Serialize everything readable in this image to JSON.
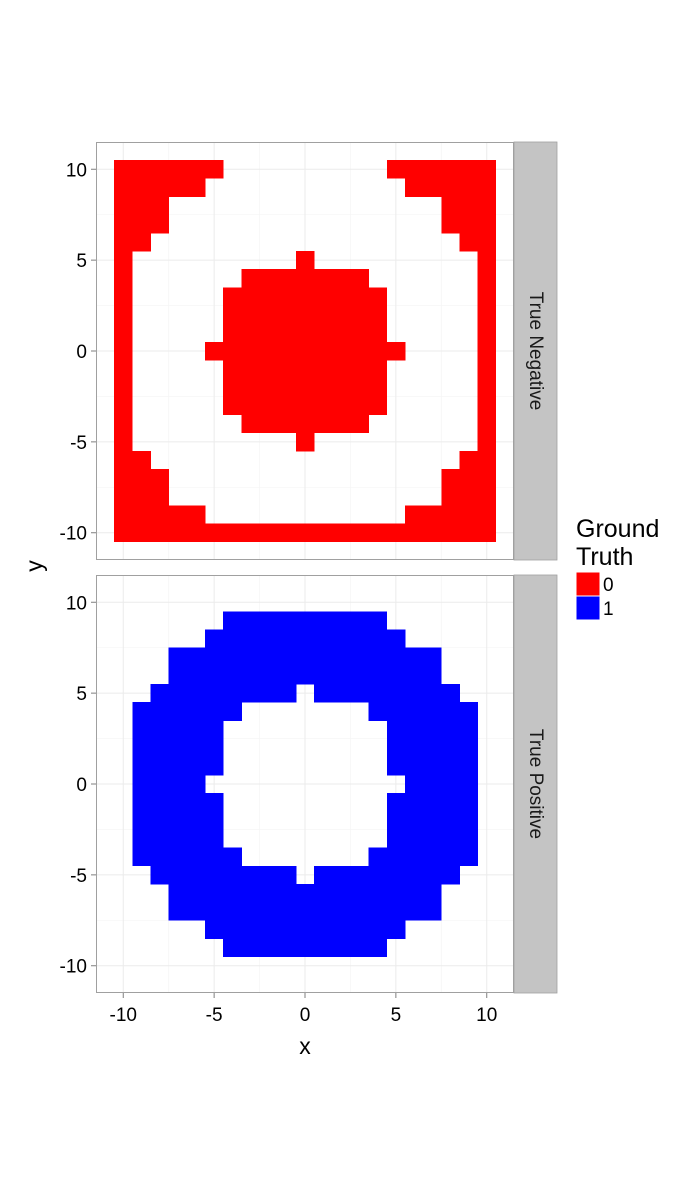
{
  "chart_data": {
    "type": "heatmap",
    "xlabel": "x",
    "ylabel": "y",
    "xlim": [
      -11.5,
      11.5
    ],
    "ylim": [
      -11.5,
      11.5
    ],
    "x_ticks": [
      "-10",
      "-5",
      "0",
      "5",
      "10"
    ],
    "y_ticks": [
      "10",
      "5",
      "0",
      "-5",
      "-10"
    ],
    "cell_size": 1,
    "grid": true,
    "legend": {
      "title_lines": [
        "Ground",
        "Truth"
      ],
      "placement": "right",
      "entries": [
        {
          "label": "0",
          "color": "#ff0000"
        },
        {
          "label": "1",
          "color": "#0000ff"
        }
      ]
    },
    "facets": [
      {
        "label": "True Negative",
        "ground_truth": "0",
        "color": "#ff0000",
        "rows": [
          {
            "y": 10,
            "spans": [
              [
                -10,
                -5
              ],
              [
                5,
                10
              ]
            ]
          },
          {
            "y": 9,
            "spans": [
              [
                -10,
                -6
              ],
              [
                6,
                10
              ]
            ]
          },
          {
            "y": 8,
            "spans": [
              [
                -10,
                -8
              ],
              [
                8,
                10
              ]
            ]
          },
          {
            "y": 7,
            "spans": [
              [
                -10,
                -8
              ],
              [
                8,
                10
              ]
            ]
          },
          {
            "y": 6,
            "spans": [
              [
                -10,
                -9
              ],
              [
                9,
                10
              ]
            ]
          },
          {
            "y": 5,
            "spans": [
              [
                -10,
                -10
              ],
              [
                0,
                0
              ],
              [
                10,
                10
              ]
            ]
          },
          {
            "y": 4,
            "spans": [
              [
                -10,
                -10
              ],
              [
                -3,
                3
              ],
              [
                10,
                10
              ]
            ]
          },
          {
            "y": 3,
            "spans": [
              [
                -10,
                -10
              ],
              [
                -4,
                4
              ],
              [
                10,
                10
              ]
            ]
          },
          {
            "y": 2,
            "spans": [
              [
                -10,
                -10
              ],
              [
                -4,
                4
              ],
              [
                10,
                10
              ]
            ]
          },
          {
            "y": 1,
            "spans": [
              [
                -10,
                -10
              ],
              [
                -4,
                4
              ],
              [
                10,
                10
              ]
            ]
          },
          {
            "y": 0,
            "spans": [
              [
                -10,
                -10
              ],
              [
                -5,
                5
              ],
              [
                10,
                10
              ]
            ]
          },
          {
            "y": -1,
            "spans": [
              [
                -10,
                -10
              ],
              [
                -4,
                4
              ],
              [
                10,
                10
              ]
            ]
          },
          {
            "y": -2,
            "spans": [
              [
                -10,
                -10
              ],
              [
                -4,
                4
              ],
              [
                10,
                10
              ]
            ]
          },
          {
            "y": -3,
            "spans": [
              [
                -10,
                -10
              ],
              [
                -4,
                4
              ],
              [
                10,
                10
              ]
            ]
          },
          {
            "y": -4,
            "spans": [
              [
                -10,
                -10
              ],
              [
                -3,
                3
              ],
              [
                10,
                10
              ]
            ]
          },
          {
            "y": -5,
            "spans": [
              [
                -10,
                -10
              ],
              [
                0,
                0
              ],
              [
                10,
                10
              ]
            ]
          },
          {
            "y": -6,
            "spans": [
              [
                -10,
                -9
              ],
              [
                9,
                10
              ]
            ]
          },
          {
            "y": -7,
            "spans": [
              [
                -10,
                -8
              ],
              [
                8,
                10
              ]
            ]
          },
          {
            "y": -8,
            "spans": [
              [
                -10,
                -8
              ],
              [
                8,
                10
              ]
            ]
          },
          {
            "y": -9,
            "spans": [
              [
                -10,
                -6
              ],
              [
                6,
                10
              ]
            ]
          },
          {
            "y": -10,
            "spans": [
              [
                -10,
                10
              ]
            ]
          }
        ]
      },
      {
        "label": "True Positive",
        "ground_truth": "1",
        "color": "#0000ff",
        "rows": [
          {
            "y": 9,
            "spans": [
              [
                -4,
                4
              ]
            ]
          },
          {
            "y": 8,
            "spans": [
              [
                -5,
                5
              ]
            ]
          },
          {
            "y": 7,
            "spans": [
              [
                -7,
                7
              ]
            ]
          },
          {
            "y": 6,
            "spans": [
              [
                -7,
                7
              ]
            ]
          },
          {
            "y": 5,
            "spans": [
              [
                -8,
                -1
              ],
              [
                1,
                8
              ]
            ]
          },
          {
            "y": 4,
            "spans": [
              [
                -9,
                -4
              ],
              [
                4,
                9
              ]
            ]
          },
          {
            "y": 3,
            "spans": [
              [
                -9,
                -5
              ],
              [
                5,
                9
              ]
            ]
          },
          {
            "y": 2,
            "spans": [
              [
                -9,
                -5
              ],
              [
                5,
                9
              ]
            ]
          },
          {
            "y": 1,
            "spans": [
              [
                -9,
                -5
              ],
              [
                5,
                9
              ]
            ]
          },
          {
            "y": 0,
            "spans": [
              [
                -9,
                -6
              ],
              [
                6,
                9
              ]
            ]
          },
          {
            "y": -1,
            "spans": [
              [
                -9,
                -5
              ],
              [
                5,
                9
              ]
            ]
          },
          {
            "y": -2,
            "spans": [
              [
                -9,
                -5
              ],
              [
                5,
                9
              ]
            ]
          },
          {
            "y": -3,
            "spans": [
              [
                -9,
                -5
              ],
              [
                5,
                9
              ]
            ]
          },
          {
            "y": -4,
            "spans": [
              [
                -9,
                -4
              ],
              [
                4,
                9
              ]
            ]
          },
          {
            "y": -5,
            "spans": [
              [
                -8,
                -1
              ],
              [
                1,
                8
              ]
            ]
          },
          {
            "y": -6,
            "spans": [
              [
                -7,
                7
              ]
            ]
          },
          {
            "y": -7,
            "spans": [
              [
                -7,
                7
              ]
            ]
          },
          {
            "y": -8,
            "spans": [
              [
                -5,
                5
              ]
            ]
          },
          {
            "y": -9,
            "spans": [
              [
                -4,
                4
              ]
            ]
          }
        ]
      }
    ]
  }
}
